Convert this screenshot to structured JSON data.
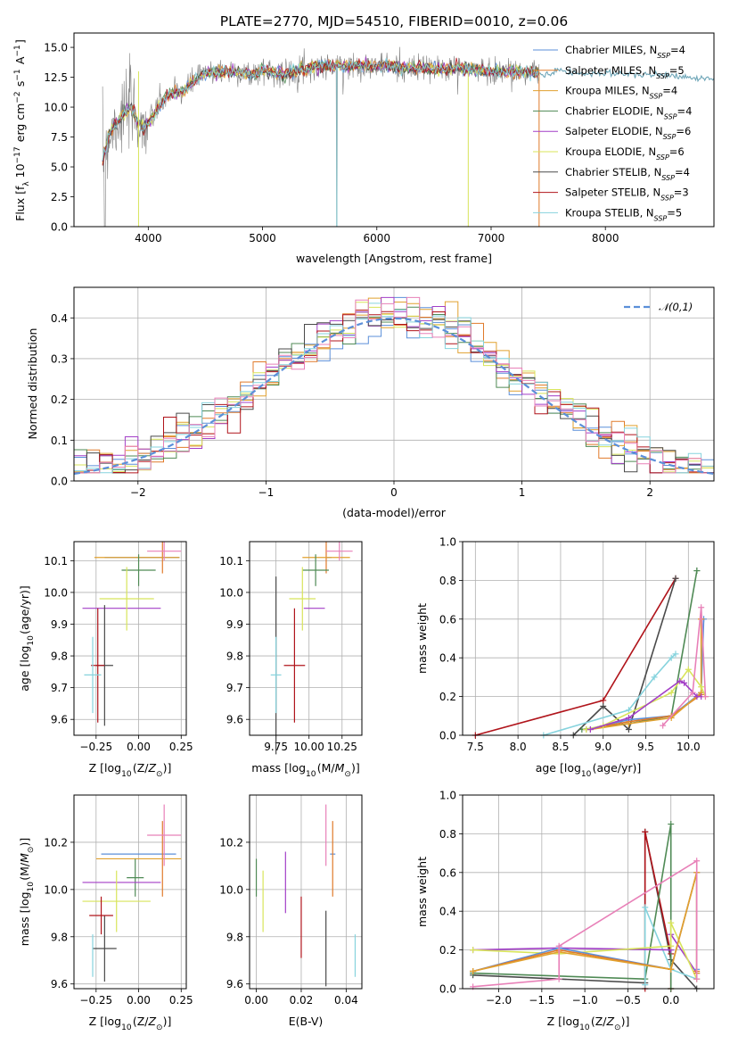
{
  "figure": {
    "title": "PLATE=2770, MJD=54510, FIBERID=0010, z=0.06"
  },
  "colors": {
    "series": [
      "#5b8fd9",
      "#e07a2a",
      "#e1a12f",
      "#4f8a55",
      "#a33fc7",
      "#d8e45a",
      "#4a4a4a",
      "#b0141b",
      "#86d3dd"
    ],
    "pink": "#e880b8",
    "data": "#808080",
    "normal_curve": "#5b8fd9"
  },
  "chart_data": [
    {
      "id": "spectrum",
      "type": "line",
      "title": "PLATE=2770, MJD=54510, FIBERID=0010, z=0.06",
      "xlabel": "wavelength [Angstrom, rest frame]",
      "ylabel": "Flux [f_λ 10^-17 erg cm^-2 s^-1 A^-1]",
      "xlim": [
        3350,
        8950
      ],
      "ylim": [
        0,
        16.2
      ],
      "xticks": [
        4000,
        5000,
        6000,
        7000,
        8000
      ],
      "yticks": [
        0.0,
        2.5,
        5.0,
        7.5,
        10.0,
        12.5,
        15.0
      ],
      "grid": false,
      "legend": "right",
      "continuum": {
        "x": [
          3600,
          3650,
          3700,
          3750,
          3800,
          3850,
          3900,
          3950,
          4000,
          4100,
          4200,
          4300,
          4400,
          4500,
          4600,
          4700,
          4800,
          4900,
          5000,
          5100,
          5200,
          5300,
          5400,
          5500,
          5600,
          5700,
          5800,
          5900,
          6000,
          6100,
          6200,
          6300,
          6400,
          6500,
          6600,
          6700,
          6800,
          6900,
          7000,
          7100,
          7200,
          7300,
          7400
        ],
        "y": [
          5.5,
          7.5,
          8.5,
          9.0,
          9.5,
          10.0,
          9.0,
          8.3,
          8.6,
          10.2,
          11.2,
          11.3,
          12.2,
          12.8,
          12.9,
          13.0,
          12.9,
          12.7,
          13.1,
          13.0,
          12.7,
          13.1,
          13.3,
          13.4,
          13.4,
          13.4,
          13.5,
          13.5,
          13.4,
          13.5,
          13.3,
          13.2,
          13.3,
          13.2,
          13.2,
          13.3,
          13.1,
          13.1,
          13.0,
          13.0,
          13.0,
          13.0,
          12.9
        ]
      },
      "red_tail": {
        "x": [
          7400,
          7500,
          7600,
          7700,
          7800,
          7900,
          8000,
          8100,
          8200,
          8300,
          8400,
          8500,
          8600,
          8700,
          8800,
          8950
        ],
        "y": [
          12.8,
          12.7,
          13.1,
          12.9,
          12.8,
          12.8,
          12.9,
          12.7,
          12.8,
          12.7,
          12.7,
          12.8,
          12.5,
          12.6,
          12.4,
          12.3
        ]
      },
      "series": [
        {
          "name": "Chabrier MILES, N_SSP=4",
          "nssp": "4",
          "library": "Chabrier MILES"
        },
        {
          "name": "Salpeter MILES, N_SSP=5",
          "nssp": "5",
          "library": "Salpeter MILES"
        },
        {
          "name": "Kroupa MILES, N_SSP=4",
          "nssp": "4",
          "library": "Kroupa MILES"
        },
        {
          "name": "Chabrier ELODIE, N_SSP=4",
          "nssp": "4",
          "library": "Chabrier ELODIE"
        },
        {
          "name": "Salpeter ELODIE, N_SSP=6",
          "nssp": "6",
          "library": "Salpeter ELODIE"
        },
        {
          "name": "Kroupa ELODIE, N_SSP=6",
          "nssp": "6",
          "library": "Kroupa ELODIE"
        },
        {
          "name": "Chabrier STELIB, N_SSP=4",
          "nssp": "4",
          "library": "Chabrier STELIB"
        },
        {
          "name": "Salpeter STELIB, N_SSP=3",
          "nssp": "3",
          "library": "Salpeter STELIB"
        },
        {
          "name": "Kroupa STELIB, N_SSP=5",
          "nssp": "5",
          "library": "Kroupa STELIB"
        }
      ]
    },
    {
      "id": "residuals",
      "type": "line",
      "xlabel": "(data-model)/error",
      "ylabel": "Normed distribution",
      "xlim": [
        -2.5,
        2.5
      ],
      "ylim": [
        0,
        0.475
      ],
      "xticks": [
        -2,
        -1,
        0,
        1,
        2
      ],
      "yticks": [
        0.0,
        0.1,
        0.2,
        0.3,
        0.4
      ],
      "grid": true,
      "legend": "top-right",
      "normal_label": "N(0,1)",
      "bin_width": 0.1
    },
    {
      "id": "age_vs_Z",
      "type": "scatter",
      "xlabel": "Z [log10(Z/Z⊙)]",
      "ylabel": "age [log10(age/yr)]",
      "xlim": [
        -0.38,
        0.28
      ],
      "ylim": [
        9.55,
        10.16
      ],
      "xticks": [
        -0.25,
        0.0,
        0.25
      ],
      "yticks": [
        9.6,
        9.7,
        9.8,
        9.9,
        10.0,
        10.1
      ],
      "grid": true,
      "points": [
        {
          "c": 0,
          "x": 0.02,
          "xerr": 0.22,
          "y": 10.11,
          "yerr": 0.0
        },
        {
          "c": 1,
          "x": 0.14,
          "xerr": 0.0,
          "y": 10.11,
          "yerr": 0.05
        },
        {
          "c": 2,
          "x": -0.01,
          "xerr": 0.25,
          "y": 10.11,
          "yerr": 0.0
        },
        {
          "c": 3,
          "x": 0.0,
          "xerr": 0.1,
          "y": 10.07,
          "yerr": 0.05
        },
        {
          "c": 4,
          "x": -0.1,
          "xerr": 0.23,
          "y": 9.95,
          "yerr": 0.0
        },
        {
          "c": 5,
          "x": -0.07,
          "xerr": 0.16,
          "y": 9.98,
          "yerr": 0.1
        },
        {
          "c": 6,
          "x": -0.2,
          "xerr": 0.05,
          "y": 9.77,
          "yerr": 0.19
        },
        {
          "c": 7,
          "x": -0.24,
          "xerr": 0.04,
          "y": 9.77,
          "yerr": 0.18
        },
        {
          "c": 8,
          "x": -0.27,
          "xerr": 0.05,
          "y": 9.74,
          "yerr": 0.12
        },
        {
          "c": 9,
          "x": 0.15,
          "xerr": 0.1,
          "y": 10.13,
          "yerr": 0.03
        }
      ]
    },
    {
      "id": "age_vs_mass",
      "type": "scatter",
      "xlabel": "mass [log10(M/M⊙)]",
      "ylabel": "",
      "xlim": [
        9.55,
        10.4
      ],
      "ylim": [
        9.55,
        10.16
      ],
      "xticks": [
        9.75,
        10.0,
        10.25
      ],
      "yticks": [
        9.6,
        9.7,
        9.8,
        9.9,
        10.0,
        10.1
      ],
      "grid": true,
      "points": [
        {
          "c": 0,
          "x": 10.15,
          "xerr": 0.0,
          "y": 10.11,
          "yerr": 0.0
        },
        {
          "c": 1,
          "x": 10.13,
          "xerr": 0.0,
          "y": 10.11,
          "yerr": 0.05
        },
        {
          "c": 2,
          "x": 10.13,
          "xerr": 0.18,
          "y": 10.11,
          "yerr": 0.0
        },
        {
          "c": 3,
          "x": 10.05,
          "xerr": 0.1,
          "y": 10.07,
          "yerr": 0.05
        },
        {
          "c": 4,
          "x": 10.04,
          "xerr": 0.08,
          "y": 9.95,
          "yerr": 0.0
        },
        {
          "c": 5,
          "x": 9.95,
          "xerr": 0.1,
          "y": 9.98,
          "yerr": 0.1
        },
        {
          "c": 6,
          "x": 9.75,
          "xerr": 0.0,
          "y": 9.77,
          "yerr": 0.28
        },
        {
          "c": 7,
          "x": 9.89,
          "xerr": 0.08,
          "y": 9.77,
          "yerr": 0.18
        },
        {
          "c": 8,
          "x": 9.75,
          "xerr": 0.04,
          "y": 9.74,
          "yerr": 0.12
        },
        {
          "c": 9,
          "x": 10.23,
          "xerr": 0.1,
          "y": 10.13,
          "yerr": 0.03
        }
      ]
    },
    {
      "id": "mw_vs_age",
      "type": "line",
      "xlabel": "age [log10(age/yr)]",
      "ylabel": "mass weight",
      "xlim": [
        7.35,
        10.3
      ],
      "ylim": [
        0.0,
        1.0
      ],
      "xticks": [
        7.5,
        8.0,
        8.5,
        9.0,
        9.5,
        10.0
      ],
      "yticks": [
        0.0,
        0.2,
        0.4,
        0.6,
        0.8,
        1.0
      ],
      "grid": true,
      "series": [
        {
          "c": 7,
          "x": [
            7.5,
            9.0,
            9.85
          ],
          "y": [
            0.0,
            0.18,
            0.81
          ]
        },
        {
          "c": 6,
          "x": [
            8.65,
            9.0,
            9.3,
            9.85
          ],
          "y": [
            0.0,
            0.15,
            0.03,
            0.81
          ]
        },
        {
          "c": 8,
          "x": [
            8.3,
            9.3,
            9.6,
            9.8,
            9.85
          ],
          "y": [
            0.0,
            0.13,
            0.3,
            0.4,
            0.42
          ]
        },
        {
          "c": 3,
          "x": [
            8.75,
            9.3,
            9.8,
            10.1,
            10.1
          ],
          "y": [
            0.03,
            0.06,
            0.1,
            0.85,
            0.85
          ]
        },
        {
          "c": 0,
          "x": [
            8.8,
            9.3,
            9.8,
            10.15,
            10.18
          ],
          "y": [
            0.03,
            0.08,
            0.1,
            0.22,
            0.6
          ]
        },
        {
          "c": 1,
          "x": [
            8.8,
            9.3,
            9.8,
            10.15,
            10.15
          ],
          "y": [
            0.03,
            0.07,
            0.1,
            0.21,
            0.6
          ]
        },
        {
          "c": 2,
          "x": [
            8.85,
            9.3,
            9.8,
            10.15,
            10.15
          ],
          "y": [
            0.03,
            0.06,
            0.09,
            0.22,
            0.6
          ]
        },
        {
          "c": 5,
          "x": [
            8.8,
            9.0,
            9.8,
            10.0,
            10.15,
            10.2
          ],
          "y": [
            0.03,
            0.05,
            0.22,
            0.34,
            0.25,
            0.2
          ]
        },
        {
          "c": 4,
          "x": [
            8.85,
            9.3,
            9.9,
            9.95,
            10.1,
            10.15
          ],
          "y": [
            0.03,
            0.09,
            0.28,
            0.27,
            0.2,
            0.2
          ]
        },
        {
          "c": 9,
          "x": [
            9.7,
            10.05,
            10.15,
            10.2
          ],
          "y": [
            0.05,
            0.22,
            0.66,
            0.2
          ]
        }
      ]
    },
    {
      "id": "mass_vs_Z",
      "type": "scatter",
      "xlabel": "Z [log10(Z/Z⊙)]",
      "ylabel": "mass [log10(M/M⊙)]",
      "xlim": [
        -0.38,
        0.28
      ],
      "ylim": [
        9.58,
        10.4
      ],
      "xticks": [
        -0.25,
        0.0,
        0.25
      ],
      "yticks": [
        9.6,
        9.8,
        10.0,
        10.2
      ],
      "grid": true,
      "points": [
        {
          "c": 0,
          "x": 0.0,
          "xerr": 0.22,
          "y": 10.15,
          "yerr": 0.0
        },
        {
          "c": 1,
          "x": 0.14,
          "xerr": 0.0,
          "y": 10.13,
          "yerr": 0.16
        },
        {
          "c": 2,
          "x": 0.0,
          "xerr": 0.25,
          "y": 10.13,
          "yerr": 0.0
        },
        {
          "c": 3,
          "x": -0.02,
          "xerr": 0.05,
          "y": 10.05,
          "yerr": 0.08
        },
        {
          "c": 4,
          "x": -0.1,
          "xerr": 0.23,
          "y": 10.03,
          "yerr": 0.0
        },
        {
          "c": 5,
          "x": -0.13,
          "xerr": 0.2,
          "y": 9.95,
          "yerr": 0.13
        },
        {
          "c": 6,
          "x": -0.2,
          "xerr": 0.07,
          "y": 9.75,
          "yerr": 0.14
        },
        {
          "c": 7,
          "x": -0.22,
          "xerr": 0.07,
          "y": 9.89,
          "yerr": 0.08
        },
        {
          "c": 8,
          "x": -0.27,
          "xerr": 0.0,
          "y": 9.72,
          "yerr": 0.09
        },
        {
          "c": 9,
          "x": 0.15,
          "xerr": 0.1,
          "y": 10.23,
          "yerr": 0.13
        }
      ]
    },
    {
      "id": "mass_vs_ebv",
      "type": "scatter",
      "xlabel": "E(B-V)",
      "ylabel": "",
      "xlim": [
        -0.003,
        0.047
      ],
      "ylim": [
        9.58,
        10.4
      ],
      "xticks": [
        0.0,
        0.02,
        0.04
      ],
      "yticks": [
        9.6,
        9.8,
        10.0,
        10.2
      ],
      "grid": true,
      "points": [
        {
          "c": 0,
          "x": 0.034,
          "xerr": 0.0,
          "y": 10.15,
          "yerr": 0.0
        },
        {
          "c": 1,
          "x": 0.034,
          "xerr": 0.0,
          "y": 10.13,
          "yerr": 0.16
        },
        {
          "c": 3,
          "x": 0.0,
          "xerr": 0.0,
          "y": 10.05,
          "yerr": 0.08
        },
        {
          "c": 4,
          "x": 0.013,
          "xerr": 0.0,
          "y": 10.03,
          "yerr": 0.13
        },
        {
          "c": 5,
          "x": 0.003,
          "xerr": 0.0,
          "y": 9.95,
          "yerr": 0.13
        },
        {
          "c": 6,
          "x": 0.031,
          "xerr": 0.0,
          "y": 9.75,
          "yerr": 0.16
        },
        {
          "c": 7,
          "x": 0.02,
          "xerr": 0.0,
          "y": 9.84,
          "yerr": 0.13
        },
        {
          "c": 8,
          "x": 0.044,
          "xerr": 0.0,
          "y": 9.72,
          "yerr": 0.09
        },
        {
          "c": 9,
          "x": 0.031,
          "xerr": 0.0,
          "y": 10.23,
          "yerr": 0.13
        }
      ]
    },
    {
      "id": "mw_vs_Z",
      "type": "line",
      "xlabel": "Z [log10(Z/Z⊙)]",
      "ylabel": "mass weight",
      "xlim": [
        -2.42,
        0.5
      ],
      "ylim": [
        0.0,
        1.0
      ],
      "xticks": [
        -2.0,
        -1.5,
        -1.0,
        -0.5,
        0.0
      ],
      "yticks": [
        0.0,
        0.2,
        0.4,
        0.6,
        0.8,
        1.0
      ],
      "grid": true,
      "series": [
        {
          "c": 6,
          "x": [
            -2.3,
            -0.3,
            -0.3,
            0.0,
            0.3
          ],
          "y": [
            0.07,
            0.03,
            0.81,
            0.15,
            0.0
          ]
        },
        {
          "c": 7,
          "x": [
            -0.3,
            -0.3,
            0.0,
            0.0
          ],
          "y": [
            0.0,
            0.81,
            0.18,
            0.0
          ]
        },
        {
          "c": 3,
          "x": [
            -2.3,
            -0.3,
            0.0,
            0.0
          ],
          "y": [
            0.08,
            0.05,
            0.85,
            0.0
          ]
        },
        {
          "c": 8,
          "x": [
            -0.3,
            -0.3,
            0.0,
            0.3
          ],
          "y": [
            0.02,
            0.42,
            0.1,
            0.05
          ]
        },
        {
          "c": 4,
          "x": [
            -2.3,
            -1.3,
            0.0,
            0.0,
            0.3
          ],
          "y": [
            0.2,
            0.21,
            0.2,
            0.28,
            0.08
          ]
        },
        {
          "c": 5,
          "x": [
            -2.3,
            -1.3,
            0.0,
            0.0,
            0.3
          ],
          "y": [
            0.2,
            0.18,
            0.22,
            0.34,
            0.05
          ]
        },
        {
          "c": 0,
          "x": [
            -2.3,
            -1.3,
            0.0,
            0.3,
            0.3
          ],
          "y": [
            0.09,
            0.21,
            0.1,
            0.6,
            0.1
          ]
        },
        {
          "c": 1,
          "x": [
            -2.3,
            -1.3,
            0.0,
            0.3,
            0.3
          ],
          "y": [
            0.09,
            0.2,
            0.1,
            0.6,
            0.09
          ]
        },
        {
          "c": 2,
          "x": [
            -2.3,
            -1.3,
            0.0,
            0.3,
            0.3
          ],
          "y": [
            0.09,
            0.19,
            0.1,
            0.6,
            0.08
          ]
        },
        {
          "c": 9,
          "x": [
            -2.3,
            -1.3,
            -1.3,
            0.3,
            0.3
          ],
          "y": [
            0.01,
            0.05,
            0.22,
            0.66,
            0.05
          ]
        }
      ]
    }
  ]
}
